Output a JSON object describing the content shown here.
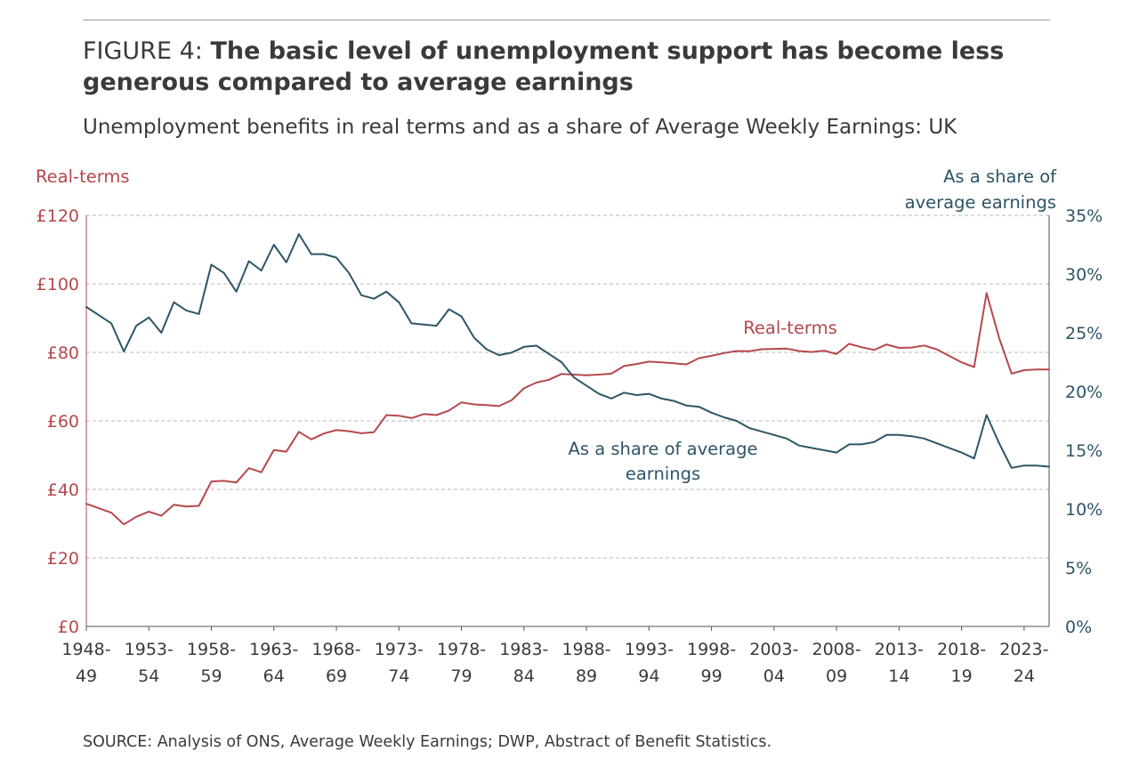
{
  "figure": {
    "prefix": "FIGURE 4:",
    "headline": "The basic level of unemployment support has become less generous compared to average earnings",
    "subtitle": "Unemployment benefits in real terms and as a share of Average Weekly Earnings: UK",
    "source": "SOURCE: Analysis of ONS, Average Weekly Earnings; DWP, Abstract of Benefit Statistics."
  },
  "colors": {
    "real_terms": "#b5484c",
    "share": "#2d5566",
    "grid": "#b8b8b8",
    "text": "#3a3a3a"
  },
  "chart_data": {
    "type": "line",
    "title": "Unemployment benefits in real terms and as a share of Average Weekly Earnings: UK",
    "left_axis": {
      "label": "Real-terms",
      "range": [
        0,
        120
      ],
      "ticks": [
        0,
        20,
        40,
        60,
        80,
        100,
        120
      ],
      "tick_labels": [
        "£0",
        "£20",
        "£40",
        "£60",
        "£80",
        "£100",
        "£120"
      ]
    },
    "right_axis": {
      "label_lines": [
        "As a share of",
        "average earnings"
      ],
      "range": [
        0,
        35
      ],
      "ticks": [
        0,
        5,
        10,
        15,
        20,
        25,
        30,
        35
      ],
      "tick_labels": [
        "0%",
        "5%",
        "10%",
        "15%",
        "20%",
        "25%",
        "30%",
        "35%"
      ]
    },
    "x_axis": {
      "start_year": 1948,
      "end_year": 2025,
      "tick_labels": [
        {
          "year": 1948,
          "lines": [
            "1948-",
            "49"
          ]
        },
        {
          "year": 1953,
          "lines": [
            "1953-",
            "54"
          ]
        },
        {
          "year": 1958,
          "lines": [
            "1958-",
            "59"
          ]
        },
        {
          "year": 1963,
          "lines": [
            "1963-",
            "64"
          ]
        },
        {
          "year": 1968,
          "lines": [
            "1968-",
            "69"
          ]
        },
        {
          "year": 1973,
          "lines": [
            "1973-",
            "74"
          ]
        },
        {
          "year": 1978,
          "lines": [
            "1978-",
            "79"
          ]
        },
        {
          "year": 1983,
          "lines": [
            "1983-",
            "84"
          ]
        },
        {
          "year": 1988,
          "lines": [
            "1988-",
            "89"
          ]
        },
        {
          "year": 1993,
          "lines": [
            "1993-",
            "94"
          ]
        },
        {
          "year": 1998,
          "lines": [
            "1998-",
            "99"
          ]
        },
        {
          "year": 2003,
          "lines": [
            "2003-",
            "04"
          ]
        },
        {
          "year": 2008,
          "lines": [
            "2008-",
            "09"
          ]
        },
        {
          "year": 2013,
          "lines": [
            "2013-",
            "14"
          ]
        },
        {
          "year": 2018,
          "lines": [
            "2018-",
            "19"
          ]
        },
        {
          "year": 2023,
          "lines": [
            "2023-",
            "24"
          ]
        }
      ]
    },
    "grid": true,
    "series": [
      {
        "name": "Real-terms",
        "axis": "left",
        "color": "#b5484c",
        "annotation": [
          "Real-terms"
        ],
        "points": [
          [
            1948,
            35.8
          ],
          [
            1949,
            34.5
          ],
          [
            1950,
            33.2
          ],
          [
            1951,
            29.8
          ],
          [
            1952,
            32.0
          ],
          [
            1953,
            33.5
          ],
          [
            1954,
            32.3
          ],
          [
            1955,
            35.5
          ],
          [
            1956,
            35.0
          ],
          [
            1957,
            35.2
          ],
          [
            1958,
            42.3
          ],
          [
            1959,
            42.5
          ],
          [
            1960,
            42.0
          ],
          [
            1961,
            46.2
          ],
          [
            1962,
            45.0
          ],
          [
            1963,
            51.5
          ],
          [
            1964,
            51.0
          ],
          [
            1965,
            56.8
          ],
          [
            1966,
            54.6
          ],
          [
            1967,
            56.3
          ],
          [
            1968,
            57.3
          ],
          [
            1969,
            57.0
          ],
          [
            1970,
            56.4
          ],
          [
            1971,
            56.7
          ],
          [
            1972,
            61.7
          ],
          [
            1973,
            61.5
          ],
          [
            1974,
            60.8
          ],
          [
            1975,
            62.0
          ],
          [
            1976,
            61.7
          ],
          [
            1977,
            63.0
          ],
          [
            1978,
            65.4
          ],
          [
            1979,
            64.8
          ],
          [
            1980,
            64.6
          ],
          [
            1981,
            64.3
          ],
          [
            1982,
            66.0
          ],
          [
            1983,
            69.5
          ],
          [
            1984,
            71.2
          ],
          [
            1985,
            72.0
          ],
          [
            1986,
            73.7
          ],
          [
            1987,
            73.5
          ],
          [
            1988,
            73.3
          ],
          [
            1989,
            73.5
          ],
          [
            1990,
            73.8
          ],
          [
            1991,
            76.0
          ],
          [
            1992,
            76.6
          ],
          [
            1993,
            77.3
          ],
          [
            1994,
            77.1
          ],
          [
            1995,
            76.8
          ],
          [
            1996,
            76.5
          ],
          [
            1997,
            78.3
          ],
          [
            1998,
            79.0
          ],
          [
            1999,
            79.8
          ],
          [
            2000,
            80.4
          ],
          [
            2001,
            80.3
          ],
          [
            2002,
            80.9
          ],
          [
            2003,
            81.0
          ],
          [
            2004,
            81.1
          ],
          [
            2005,
            80.4
          ],
          [
            2006,
            80.1
          ],
          [
            2007,
            80.5
          ],
          [
            2008,
            79.5
          ],
          [
            2009,
            82.5
          ],
          [
            2010,
            81.5
          ],
          [
            2011,
            80.7
          ],
          [
            2012,
            82.3
          ],
          [
            2013,
            81.3
          ],
          [
            2014,
            81.4
          ],
          [
            2015,
            82.0
          ],
          [
            2016,
            80.9
          ],
          [
            2017,
            79.0
          ],
          [
            2018,
            77.1
          ],
          [
            2019,
            75.7
          ],
          [
            2020,
            97.3
          ],
          [
            2021,
            84.2
          ],
          [
            2022,
            73.8
          ],
          [
            2023,
            74.8
          ],
          [
            2024,
            75.0
          ],
          [
            2025,
            75.0
          ]
        ]
      },
      {
        "name": "As a share of average earnings",
        "axis": "right",
        "color": "#2d5566",
        "annotation": [
          "As a share of average",
          "earnings"
        ],
        "points": [
          [
            1948,
            27.2
          ],
          [
            1949,
            26.5
          ],
          [
            1950,
            25.8
          ],
          [
            1951,
            23.4
          ],
          [
            1952,
            25.6
          ],
          [
            1953,
            26.3
          ],
          [
            1954,
            25.0
          ],
          [
            1955,
            27.6
          ],
          [
            1956,
            26.9
          ],
          [
            1957,
            26.6
          ],
          [
            1958,
            30.8
          ],
          [
            1959,
            30.1
          ],
          [
            1960,
            28.5
          ],
          [
            1961,
            31.1
          ],
          [
            1962,
            30.3
          ],
          [
            1963,
            32.5
          ],
          [
            1964,
            31.0
          ],
          [
            1965,
            33.4
          ],
          [
            1966,
            31.7
          ],
          [
            1967,
            31.7
          ],
          [
            1968,
            31.4
          ],
          [
            1969,
            30.1
          ],
          [
            1970,
            28.2
          ],
          [
            1971,
            27.9
          ],
          [
            1972,
            28.5
          ],
          [
            1973,
            27.6
          ],
          [
            1974,
            25.8
          ],
          [
            1975,
            25.7
          ],
          [
            1976,
            25.6
          ],
          [
            1977,
            27.0
          ],
          [
            1978,
            26.4
          ],
          [
            1979,
            24.6
          ],
          [
            1980,
            23.6
          ],
          [
            1981,
            23.1
          ],
          [
            1982,
            23.3
          ],
          [
            1983,
            23.8
          ],
          [
            1984,
            23.9
          ],
          [
            1985,
            23.2
          ],
          [
            1986,
            22.5
          ],
          [
            1987,
            21.2
          ],
          [
            1988,
            20.5
          ],
          [
            1989,
            19.8
          ],
          [
            1990,
            19.4
          ],
          [
            1991,
            19.9
          ],
          [
            1992,
            19.7
          ],
          [
            1993,
            19.8
          ],
          [
            1994,
            19.4
          ],
          [
            1995,
            19.2
          ],
          [
            1996,
            18.8
          ],
          [
            1997,
            18.7
          ],
          [
            1998,
            18.2
          ],
          [
            1999,
            17.8
          ],
          [
            2000,
            17.5
          ],
          [
            2001,
            16.9
          ],
          [
            2002,
            16.6
          ],
          [
            2003,
            16.3
          ],
          [
            2004,
            16.0
          ],
          [
            2005,
            15.4
          ],
          [
            2006,
            15.2
          ],
          [
            2007,
            15.0
          ],
          [
            2008,
            14.8
          ],
          [
            2009,
            15.5
          ],
          [
            2010,
            15.5
          ],
          [
            2011,
            15.7
          ],
          [
            2012,
            16.3
          ],
          [
            2013,
            16.3
          ],
          [
            2014,
            16.2
          ],
          [
            2015,
            16.0
          ],
          [
            2016,
            15.6
          ],
          [
            2017,
            15.2
          ],
          [
            2018,
            14.8
          ],
          [
            2019,
            14.3
          ],
          [
            2020,
            18.0
          ],
          [
            2021,
            15.6
          ],
          [
            2022,
            13.5
          ],
          [
            2023,
            13.7
          ],
          [
            2024,
            13.7
          ],
          [
            2025,
            13.6
          ]
        ]
      }
    ]
  }
}
